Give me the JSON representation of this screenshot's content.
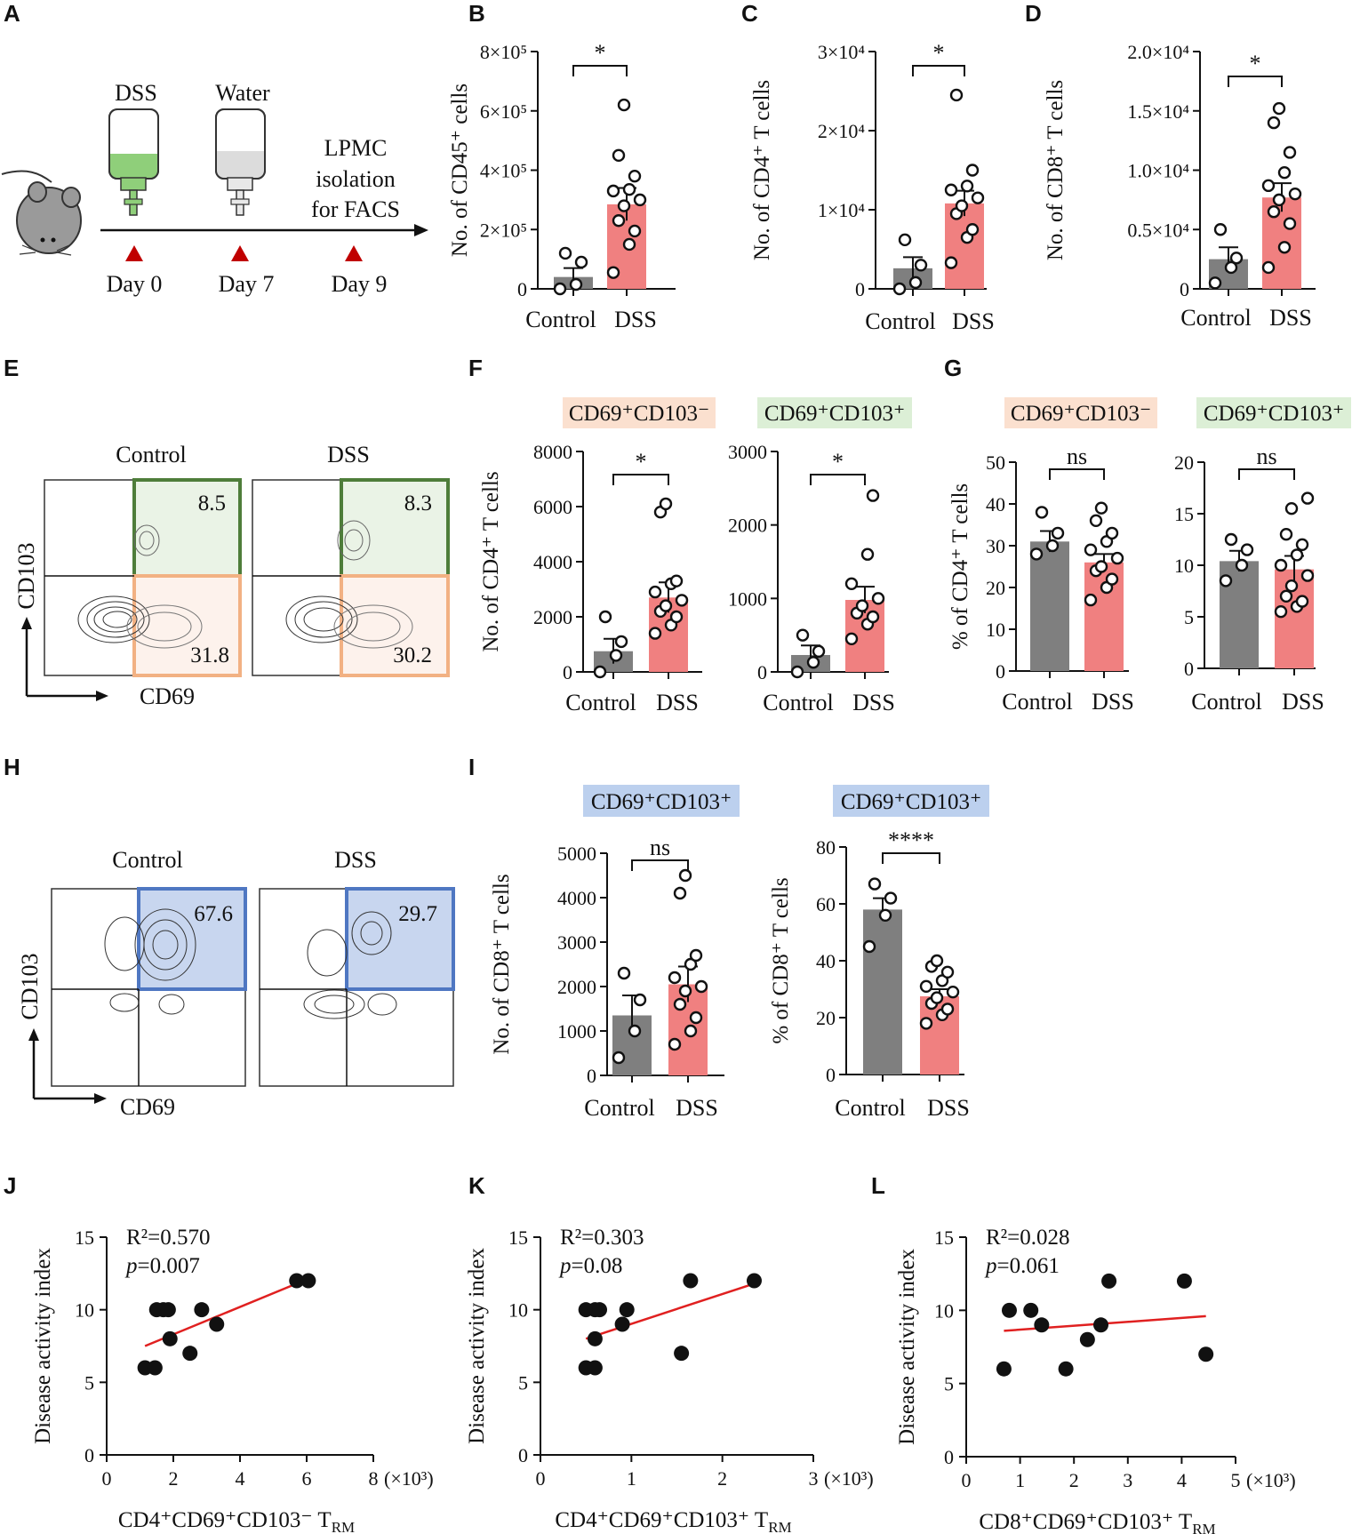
{
  "panel_letters": [
    "A",
    "B",
    "C",
    "D",
    "E",
    "F",
    "G",
    "H",
    "I",
    "J",
    "K",
    "L"
  ],
  "colors": {
    "control": "#7f7f7f",
    "dss": "#f08080",
    "green": "#4e7d3a",
    "orange": "#f2b183",
    "blue": "#4f77c2",
    "red": "#e02020"
  },
  "timeline": {
    "dss_label": "DSS",
    "water_label": "Water",
    "lpmc_lines": [
      "LPMC",
      "isolation",
      "for FACS"
    ],
    "days": [
      "Day 0",
      "Day 7",
      "Day 9"
    ]
  },
  "flow_e": {
    "control_title": "Control",
    "dss_title": "DSS",
    "y_axis": "CD103",
    "x_axis": "CD69",
    "control_upper": "8.5",
    "control_lower": "31.8",
    "dss_upper": "8.3",
    "dss_lower": "30.2"
  },
  "flow_h": {
    "control_title": "Control",
    "dss_title": "DSS",
    "y_axis": "CD103",
    "x_axis": "CD69",
    "control_value": "67.6",
    "dss_value": "29.7"
  },
  "headers": {
    "f_left": "CD69⁺CD103⁻",
    "f_right": "CD69⁺CD103⁺",
    "g_left": "CD69⁺CD103⁻",
    "g_right": "CD69⁺CD103⁺",
    "i_left": "CD69⁺CD103⁺",
    "i_right": "CD69⁺CD103⁺"
  },
  "chart_data": [
    {
      "id": "B",
      "type": "bar",
      "categories": [
        "Control",
        "DSS"
      ],
      "ylabel": "No. of CD45⁺ cells",
      "ylim": [
        0,
        800000
      ],
      "yticks": [
        "0",
        "2×10⁵",
        "4×10⁵",
        "6×10⁵",
        "8×10⁵"
      ],
      "yticks_values": [
        0,
        200000,
        400000,
        600000,
        800000
      ],
      "means": [
        40000,
        285000
      ],
      "sem": [
        30000,
        55000
      ],
      "points": [
        [
          0,
          15000,
          90000,
          120000
        ],
        [
          55000,
          150000,
          195000,
          230000,
          280000,
          300000,
          330000,
          335000,
          380000,
          450000,
          620000
        ]
      ],
      "significance": "*"
    },
    {
      "id": "C",
      "type": "bar",
      "categories": [
        "Control",
        "DSS"
      ],
      "ylabel": "No. of CD4⁺ T cells",
      "ylim": [
        0,
        30000
      ],
      "yticks": [
        "0",
        "1×10⁴",
        "2×10⁴",
        "3×10⁴"
      ],
      "yticks_values": [
        0,
        10000,
        20000,
        30000
      ],
      "means": [
        2600,
        10800
      ],
      "sem": [
        1400,
        1600
      ],
      "points": [
        [
          0,
          800,
          3000,
          6200
        ],
        [
          3300,
          6500,
          7500,
          9500,
          10500,
          11500,
          12500,
          13000,
          15000,
          24500
        ]
      ],
      "significance": "*"
    },
    {
      "id": "D",
      "type": "bar",
      "categories": [
        "Control",
        "DSS"
      ],
      "ylabel": "No. of CD8⁺ T cells",
      "ylim": [
        0,
        20000
      ],
      "yticks": [
        "0",
        "0.5×10⁴",
        "1.0×10⁴",
        "1.5×10⁴",
        "2.0×10⁴"
      ],
      "yticks_values": [
        0,
        5000,
        10000,
        15000,
        20000
      ],
      "means": [
        2500,
        7700
      ],
      "sem": [
        1000,
        1200
      ],
      "points": [
        [
          500,
          1800,
          2600,
          5000
        ],
        [
          1800,
          3500,
          5500,
          6500,
          7500,
          8000,
          8700,
          9800,
          11500,
          14000,
          15200
        ]
      ],
      "significance": "*"
    },
    {
      "id": "F1",
      "type": "bar",
      "title": "CD69⁺CD103⁻",
      "categories": [
        "Control",
        "DSS"
      ],
      "ylabel": "No. of CD4⁺ T cells",
      "ylim": [
        0,
        8000
      ],
      "yticks": [
        "0",
        "2000",
        "4000",
        "6000",
        "8000"
      ],
      "yticks_values": [
        0,
        2000,
        4000,
        6000,
        8000
      ],
      "means": [
        750,
        2700
      ],
      "sem": [
        450,
        550
      ],
      "points": [
        [
          0,
          600,
          1100,
          2000
        ],
        [
          1400,
          1700,
          2000,
          2200,
          2400,
          2600,
          2900,
          3200,
          3300,
          5800,
          6100
        ]
      ],
      "significance": "*"
    },
    {
      "id": "F2",
      "type": "bar",
      "title": "CD69⁺CD103⁺",
      "categories": [
        "Control",
        "DSS"
      ],
      "ylabel": "",
      "ylim": [
        0,
        3000
      ],
      "yticks": [
        "0",
        "1000",
        "2000",
        "3000"
      ],
      "yticks_values": [
        0,
        1000,
        2000,
        3000
      ],
      "means": [
        230,
        980
      ],
      "sem": [
        130,
        180
      ],
      "points": [
        [
          0,
          130,
          280,
          500
        ],
        [
          450,
          650,
          750,
          800,
          900,
          1000,
          1200,
          1600,
          2400
        ]
      ],
      "significance": "*"
    },
    {
      "id": "G1",
      "type": "bar",
      "title": "CD69⁺CD103⁻",
      "categories": [
        "Control",
        "DSS"
      ],
      "ylabel": "% of CD4⁺ T cells",
      "ylim": [
        0,
        50
      ],
      "yticks": [
        "0",
        "10",
        "20",
        "30",
        "40",
        "50"
      ],
      "yticks_values": [
        0,
        10,
        20,
        30,
        40,
        50
      ],
      "means": [
        31,
        26
      ],
      "sem": [
        2.5,
        2
      ],
      "points": [
        [
          28,
          30,
          33,
          38
        ],
        [
          17,
          20,
          22,
          24,
          25,
          27,
          29,
          31,
          33,
          36,
          39
        ]
      ],
      "significance": "ns"
    },
    {
      "id": "G2",
      "type": "bar",
      "title": "CD69⁺CD103⁺",
      "categories": [
        "Control",
        "DSS"
      ],
      "ylabel": "",
      "ylim": [
        0,
        20
      ],
      "yticks": [
        "0",
        "5",
        "10",
        "15",
        "20"
      ],
      "yticks_values": [
        0,
        5,
        10,
        15,
        20
      ],
      "means": [
        10.4,
        9.6
      ],
      "sem": [
        1,
        1.3
      ],
      "points": [
        [
          8.5,
          10,
          11.5,
          12.5
        ],
        [
          5.5,
          6,
          6.5,
          7,
          8,
          9,
          10,
          11,
          12,
          13,
          15.5,
          16.5
        ]
      ],
      "significance": "ns"
    },
    {
      "id": "I1",
      "type": "bar",
      "title": "CD69⁺CD103⁺",
      "categories": [
        "Control",
        "DSS"
      ],
      "ylabel": "No. of CD8⁺ T cells",
      "ylim": [
        0,
        5000
      ],
      "yticks": [
        "0",
        "1000",
        "2000",
        "3000",
        "4000",
        "5000"
      ],
      "yticks_values": [
        0,
        1000,
        2000,
        3000,
        4000,
        5000
      ],
      "means": [
        1350,
        2050
      ],
      "sem": [
        450,
        400
      ],
      "points": [
        [
          400,
          1000,
          1700,
          2300
        ],
        [
          700,
          1000,
          1300,
          1600,
          1900,
          2000,
          2200,
          2500,
          2700,
          4100,
          4500
        ]
      ],
      "significance": "ns"
    },
    {
      "id": "I2",
      "type": "bar",
      "title": "CD69⁺CD103⁺",
      "categories": [
        "Control",
        "DSS"
      ],
      "ylabel": "% of CD8⁺ T cells",
      "ylim": [
        0,
        80
      ],
      "yticks": [
        "0",
        "20",
        "40",
        "60",
        "80"
      ],
      "yticks_values": [
        0,
        20,
        40,
        60,
        80
      ],
      "means": [
        58,
        27.5
      ],
      "sem": [
        4,
        2.5
      ],
      "points": [
        [
          45,
          56,
          62,
          67
        ],
        [
          18,
          21,
          23,
          25,
          27,
          29,
          31,
          33,
          36,
          38,
          40
        ]
      ],
      "significance": "****"
    },
    {
      "id": "J",
      "type": "scatter",
      "xlabel": "CD4⁺CD69⁺CD103⁻ T",
      "xlabel_sub": "RM",
      "ylabel": "Disease activity index",
      "xunit": "(×10³)",
      "xlim": [
        0,
        8
      ],
      "ylim": [
        0,
        15
      ],
      "xticks": [
        "0",
        "2",
        "4",
        "6",
        "8"
      ],
      "xticks_values": [
        0,
        2,
        4,
        6,
        8
      ],
      "yticks": [
        "0",
        "5",
        "10",
        "15"
      ],
      "yticks_values": [
        0,
        5,
        10,
        15
      ],
      "x": [
        1.15,
        1.45,
        1.5,
        1.7,
        1.85,
        1.9,
        2.5,
        2.85,
        3.3,
        5.7,
        6.05
      ],
      "y": [
        6,
        6,
        10,
        10,
        10,
        8,
        7,
        10,
        9,
        12,
        12
      ],
      "fit": {
        "x": [
          1.15,
          5.7
        ],
        "y": [
          7.5,
          11.8
        ]
      },
      "r2": "R²=0.570",
      "p_label": "p",
      "p_value": "=0.007"
    },
    {
      "id": "K",
      "type": "scatter",
      "xlabel": "CD4⁺CD69⁺CD103⁺ T",
      "xlabel_sub": "RM",
      "ylabel": "Disease activity index",
      "xunit": "(×10³)",
      "xlim": [
        0,
        3
      ],
      "ylim": [
        0,
        15
      ],
      "xticks": [
        "0",
        "1",
        "2",
        "3"
      ],
      "xticks_values": [
        0,
        1,
        2,
        3
      ],
      "yticks": [
        "0",
        "5",
        "10",
        "15"
      ],
      "yticks_values": [
        0,
        5,
        10,
        15
      ],
      "x": [
        0.5,
        0.6,
        0.5,
        0.6,
        0.65,
        0.6,
        0.9,
        0.95,
        1.55,
        1.65,
        2.35
      ],
      "y": [
        10,
        10,
        6,
        6,
        10,
        8,
        9,
        10,
        7,
        12,
        12
      ],
      "fit": {
        "x": [
          0.5,
          2.35
        ],
        "y": [
          8,
          11.8
        ]
      },
      "r2": "R²=0.303",
      "p_label": "p",
      "p_value": "=0.08"
    },
    {
      "id": "L",
      "type": "scatter",
      "xlabel": "CD8⁺CD69⁺CD103⁺ T",
      "xlabel_sub": "RM",
      "ylabel": "Disease activity index",
      "xunit": "(×10³)",
      "xlim": [
        0,
        5
      ],
      "ylim": [
        0,
        15
      ],
      "xticks": [
        "0",
        "1",
        "2",
        "3",
        "4",
        "5"
      ],
      "xticks_values": [
        0,
        1,
        2,
        3,
        4,
        5
      ],
      "yticks": [
        "0",
        "5",
        "10",
        "15"
      ],
      "yticks_values": [
        0,
        5,
        10,
        15
      ],
      "x": [
        0.7,
        0.8,
        1.2,
        1.4,
        1.85,
        2.25,
        2.5,
        2.65,
        4.05,
        4.45
      ],
      "y": [
        6,
        10,
        10,
        9,
        6,
        8,
        9,
        12,
        12,
        7
      ],
      "fit": {
        "x": [
          0.7,
          4.45
        ],
        "y": [
          8.6,
          9.6
        ]
      },
      "r2": "R²=0.028",
      "p_label": "p",
      "p_value": "=0.061"
    }
  ]
}
